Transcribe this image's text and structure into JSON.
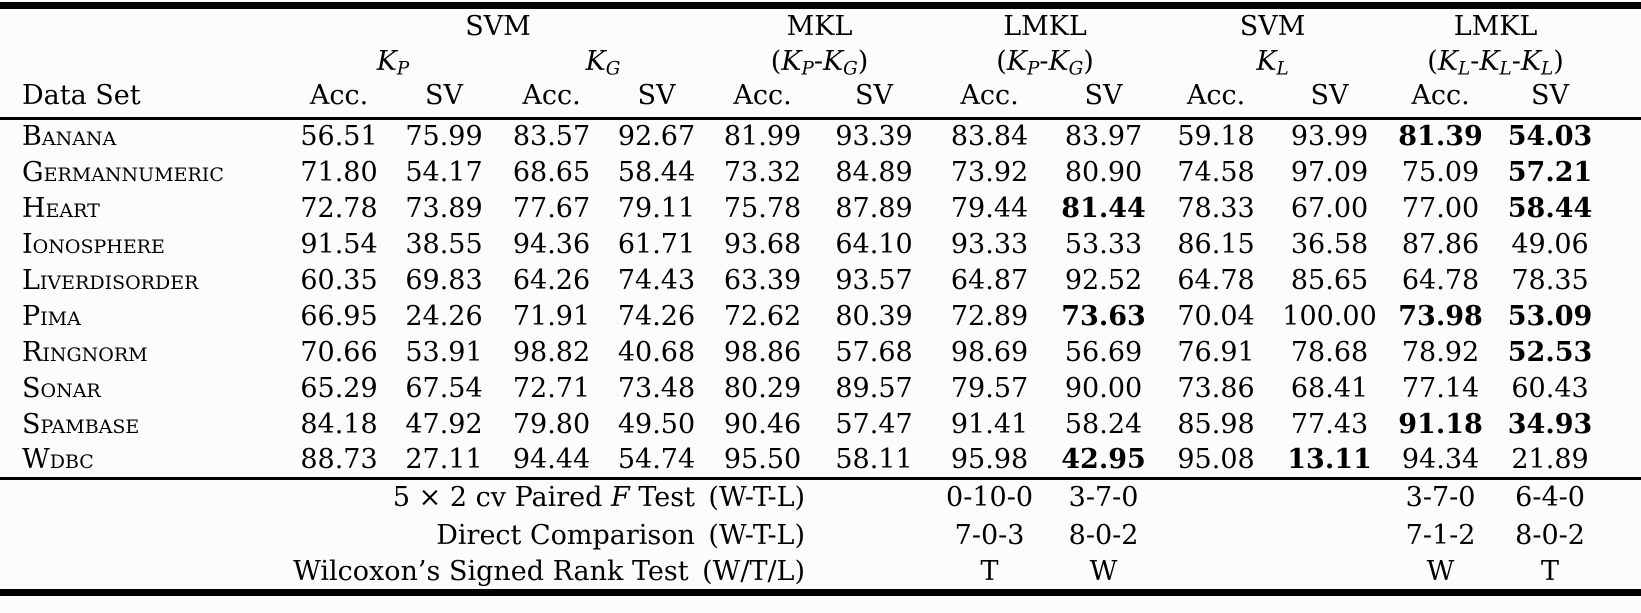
{
  "page": {
    "paper_color": "#fcfcfc",
    "ink_color": "#000000"
  },
  "table": {
    "row_header_label": "Data Set",
    "subcol_labels": {
      "acc": "Acc.",
      "sv": "SV"
    },
    "groups": [
      {
        "method": "SVM"
      },
      {
        "method": "MKL"
      },
      {
        "method": "LMKL"
      },
      {
        "method": "SVM"
      },
      {
        "method": "LMKL"
      }
    ],
    "kernels": [
      [
        {
          "t": "K",
          "i": true,
          "sub": "P"
        }
      ],
      [
        {
          "t": "K",
          "i": true,
          "sub": "G"
        }
      ],
      [
        {
          "t": "("
        },
        {
          "t": "K",
          "i": true,
          "sub": "P"
        },
        {
          "t": "-"
        },
        {
          "t": "K",
          "i": true,
          "sub": "G"
        },
        {
          "t": ")"
        }
      ],
      [
        {
          "t": "("
        },
        {
          "t": "K",
          "i": true,
          "sub": "P"
        },
        {
          "t": "-"
        },
        {
          "t": "K",
          "i": true,
          "sub": "G"
        },
        {
          "t": ")"
        }
      ],
      [
        {
          "t": "K",
          "i": true,
          "sub": "L"
        }
      ],
      [
        {
          "t": "("
        },
        {
          "t": "K",
          "i": true,
          "sub": "L"
        },
        {
          "t": "-"
        },
        {
          "t": "K",
          "i": true,
          "sub": "L"
        },
        {
          "t": "-"
        },
        {
          "t": "K",
          "i": true,
          "sub": "L"
        },
        {
          "t": ")"
        }
      ]
    ],
    "rows": [
      {
        "name": "Banana",
        "values": [
          {
            "v": "56.51"
          },
          {
            "v": "75.99"
          },
          {
            "v": "83.57"
          },
          {
            "v": "92.67"
          },
          {
            "v": "81.99"
          },
          {
            "v": "93.39"
          },
          {
            "v": "83.84"
          },
          {
            "v": "83.97"
          },
          {
            "v": "59.18"
          },
          {
            "v": "93.99"
          },
          {
            "v": "81.39",
            "b": true
          },
          {
            "v": "54.03",
            "b": true
          }
        ]
      },
      {
        "name": "Germannumeric",
        "values": [
          {
            "v": "71.80"
          },
          {
            "v": "54.17"
          },
          {
            "v": "68.65"
          },
          {
            "v": "58.44"
          },
          {
            "v": "73.32"
          },
          {
            "v": "84.89"
          },
          {
            "v": "73.92"
          },
          {
            "v": "80.90"
          },
          {
            "v": "74.58"
          },
          {
            "v": "97.09"
          },
          {
            "v": "75.09"
          },
          {
            "v": "57.21",
            "b": true
          }
        ]
      },
      {
        "name": "Heart",
        "values": [
          {
            "v": "72.78"
          },
          {
            "v": "73.89"
          },
          {
            "v": "77.67"
          },
          {
            "v": "79.11"
          },
          {
            "v": "75.78"
          },
          {
            "v": "87.89"
          },
          {
            "v": "79.44"
          },
          {
            "v": "81.44",
            "b": true
          },
          {
            "v": "78.33"
          },
          {
            "v": "67.00"
          },
          {
            "v": "77.00"
          },
          {
            "v": "58.44",
            "b": true
          }
        ]
      },
      {
        "name": "Ionosphere",
        "values": [
          {
            "v": "91.54"
          },
          {
            "v": "38.55"
          },
          {
            "v": "94.36"
          },
          {
            "v": "61.71"
          },
          {
            "v": "93.68"
          },
          {
            "v": "64.10"
          },
          {
            "v": "93.33"
          },
          {
            "v": "53.33"
          },
          {
            "v": "86.15"
          },
          {
            "v": "36.58"
          },
          {
            "v": "87.86"
          },
          {
            "v": "49.06"
          }
        ]
      },
      {
        "name": "Liverdisorder",
        "values": [
          {
            "v": "60.35"
          },
          {
            "v": "69.83"
          },
          {
            "v": "64.26"
          },
          {
            "v": "74.43"
          },
          {
            "v": "63.39"
          },
          {
            "v": "93.57"
          },
          {
            "v": "64.87"
          },
          {
            "v": "92.52"
          },
          {
            "v": "64.78"
          },
          {
            "v": "85.65"
          },
          {
            "v": "64.78"
          },
          {
            "v": "78.35"
          }
        ]
      },
      {
        "name": "Pima",
        "values": [
          {
            "v": "66.95"
          },
          {
            "v": "24.26"
          },
          {
            "v": "71.91"
          },
          {
            "v": "74.26"
          },
          {
            "v": "72.62"
          },
          {
            "v": "80.39"
          },
          {
            "v": "72.89"
          },
          {
            "v": "73.63",
            "b": true
          },
          {
            "v": "70.04"
          },
          {
            "v": "100.00"
          },
          {
            "v": "73.98",
            "b": true
          },
          {
            "v": "53.09",
            "b": true
          }
        ]
      },
      {
        "name": "Ringnorm",
        "values": [
          {
            "v": "70.66"
          },
          {
            "v": "53.91"
          },
          {
            "v": "98.82"
          },
          {
            "v": "40.68"
          },
          {
            "v": "98.86"
          },
          {
            "v": "57.68"
          },
          {
            "v": "98.69"
          },
          {
            "v": "56.69"
          },
          {
            "v": "76.91"
          },
          {
            "v": "78.68"
          },
          {
            "v": "78.92"
          },
          {
            "v": "52.53",
            "b": true
          }
        ]
      },
      {
        "name": "Sonar",
        "values": [
          {
            "v": "65.29"
          },
          {
            "v": "67.54"
          },
          {
            "v": "72.71"
          },
          {
            "v": "73.48"
          },
          {
            "v": "80.29"
          },
          {
            "v": "89.57"
          },
          {
            "v": "79.57"
          },
          {
            "v": "90.00"
          },
          {
            "v": "73.86"
          },
          {
            "v": "68.41"
          },
          {
            "v": "77.14"
          },
          {
            "v": "60.43"
          }
        ]
      },
      {
        "name": "Spambase",
        "values": [
          {
            "v": "84.18"
          },
          {
            "v": "47.92"
          },
          {
            "v": "79.80"
          },
          {
            "v": "49.50"
          },
          {
            "v": "90.46"
          },
          {
            "v": "57.47"
          },
          {
            "v": "91.41"
          },
          {
            "v": "58.24"
          },
          {
            "v": "85.98"
          },
          {
            "v": "77.43"
          },
          {
            "v": "91.18",
            "b": true
          },
          {
            "v": "34.93",
            "b": true
          }
        ]
      },
      {
        "name": "Wdbc",
        "values": [
          {
            "v": "88.73"
          },
          {
            "v": "27.11"
          },
          {
            "v": "94.44"
          },
          {
            "v": "54.74"
          },
          {
            "v": "95.50"
          },
          {
            "v": "58.11"
          },
          {
            "v": "95.98"
          },
          {
            "v": "42.95",
            "b": true
          },
          {
            "v": "95.08"
          },
          {
            "v": "13.11",
            "b": true
          },
          {
            "v": "94.34"
          },
          {
            "v": "21.89"
          }
        ]
      }
    ],
    "footer_rows": [
      {
        "label_tokens": [
          {
            "t": "5 × 2 cv Paired "
          },
          {
            "t": "F",
            "i": true
          },
          {
            "t": " Test (W-T-L)"
          }
        ],
        "values": [
          "",
          "0-10-0",
          "3-7-0",
          "",
          "",
          "3-7-0",
          "6-4-0"
        ]
      },
      {
        "label_tokens": [
          {
            "t": "Direct Comparison (W-T-L)"
          }
        ],
        "values": [
          "",
          "7-0-3",
          "8-0-2",
          "",
          "",
          "7-1-2",
          "8-0-2"
        ]
      },
      {
        "label_tokens": [
          {
            "t": "Wilcoxon’s Signed Rank Test (W/T/L)"
          }
        ],
        "values": [
          "",
          "T",
          "W",
          "",
          "",
          "W",
          "T"
        ]
      }
    ]
  }
}
